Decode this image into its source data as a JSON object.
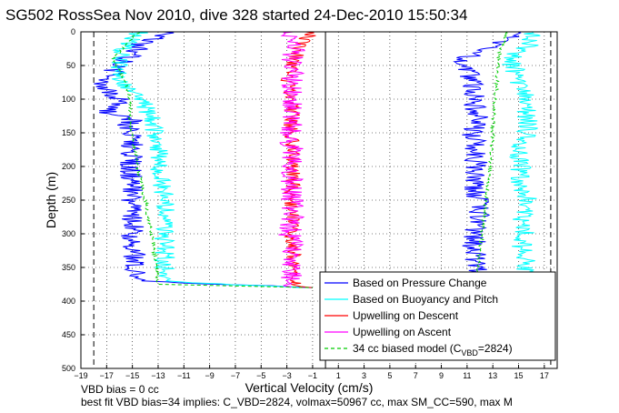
{
  "chart_data": {
    "type": "line",
    "title": "SG502 RossSea Nov 2010, dive 328 started 24-Dec-2010 15:50:34",
    "xlabel": "Vertical Velocity (cm/s)",
    "ylabel": "Depth (m)",
    "xlim": [
      -19,
      18
    ],
    "ylim": [
      0,
      500
    ],
    "y_reversed": true,
    "grid": true,
    "xticks": [
      -19,
      -17,
      -15,
      -13,
      -11,
      -9,
      -7,
      -5,
      -3,
      -1,
      1,
      3,
      5,
      7,
      9,
      11,
      13,
      15,
      17
    ],
    "yticks": [
      0,
      50,
      100,
      150,
      200,
      250,
      300,
      350,
      400,
      450,
      500
    ],
    "vlines": [
      {
        "x": -18,
        "style": "dashed",
        "color": "#000000"
      },
      {
        "x": 0,
        "style": "solid",
        "color": "#000000"
      },
      {
        "x": 17.5,
        "style": "dashed",
        "color": "#000000"
      }
    ],
    "legend_position": "bottom-right",
    "series": [
      {
        "name": "Based on Pressure Change",
        "color": "#0000ff",
        "style": "solid",
        "descent": {
          "depth": [
            0,
            10,
            20,
            30,
            40,
            50,
            60,
            70,
            80,
            90,
            100,
            110,
            120,
            130,
            140,
            150,
            175,
            200,
            225,
            250,
            275,
            300,
            325,
            350,
            370,
            380
          ],
          "velocity": [
            -12,
            -13.5,
            -14.5,
            -14.8,
            -15.5,
            -16,
            -16.5,
            -17,
            -17.5,
            -16.8,
            -16,
            -16.5,
            -17,
            -15,
            -15.5,
            -15.2,
            -15,
            -15.2,
            -15,
            -15.1,
            -15,
            -15,
            -14.8,
            -15,
            -14.5,
            -1
          ]
        },
        "ascent": {
          "depth": [
            380,
            370,
            350,
            325,
            300,
            275,
            250,
            225,
            200,
            175,
            150,
            125,
            100,
            75,
            50,
            40,
            30,
            20,
            10,
            0
          ],
          "velocity": [
            12,
            11.5,
            11.8,
            11.5,
            11.6,
            12,
            11.8,
            11.5,
            11.8,
            11.6,
            11.5,
            11.8,
            11.5,
            11.5,
            11,
            10.8,
            12,
            13,
            14,
            15
          ]
        }
      },
      {
        "name": "Based on Buoyancy and Pitch",
        "color": "#00ffff",
        "style": "solid",
        "descent": {
          "depth": [
            0,
            10,
            20,
            30,
            40,
            50,
            60,
            70,
            80,
            100,
            125,
            150,
            175,
            200,
            225,
            250,
            275,
            300,
            325,
            350,
            370,
            380
          ],
          "velocity": [
            -14.5,
            -15,
            -15.5,
            -15.8,
            -16,
            -16.2,
            -16,
            -15.8,
            -15.5,
            -14.5,
            -13.5,
            -13.2,
            -13,
            -13,
            -12.8,
            -12.5,
            -12.5,
            -12.5,
            -12.5,
            -12.5,
            -12.8,
            -2
          ]
        },
        "ascent": {
          "depth": [
            380,
            360,
            340,
            320,
            300,
            280,
            260,
            240,
            220,
            200,
            180,
            160,
            140,
            120,
            100,
            80,
            60,
            50,
            40,
            30,
            20,
            10,
            0
          ],
          "velocity": [
            15,
            15.5,
            15.5,
            15.2,
            15.5,
            15.3,
            15.8,
            15.5,
            15,
            15.2,
            15,
            15.5,
            15.8,
            15.6,
            15.8,
            15,
            14.8,
            14.5,
            14.5,
            15,
            15.8,
            16,
            16
          ]
        }
      },
      {
        "name": "Upwelling on Descent",
        "color": "#ff0000",
        "style": "solid",
        "descent": {
          "depth": [
            0,
            10,
            20,
            50,
            75,
            100,
            125,
            150,
            175,
            200,
            225,
            250,
            275,
            300,
            325,
            350,
            375,
            380
          ],
          "velocity": [
            -1,
            -1.5,
            -2,
            -2.5,
            -3,
            -2.8,
            -2.5,
            -2.8,
            -2.5,
            -2.6,
            -2.5,
            -2.7,
            -2.5,
            -2.6,
            -2.5,
            -2.5,
            -2.5,
            -1
          ]
        }
      },
      {
        "name": "Upwelling on Ascent",
        "color": "#ff00ff",
        "style": "solid",
        "ascent": {
          "depth": [
            380,
            350,
            325,
            300,
            275,
            250,
            225,
            200,
            175,
            150,
            125,
            100,
            75,
            50,
            25,
            10,
            0
          ],
          "velocity": [
            -2.8,
            -2.5,
            -2.6,
            -2.8,
            -2.5,
            -2.6,
            -2.7,
            -2.5,
            -2.6,
            -2.7,
            -2.5,
            -2.6,
            -2.6,
            -2.5,
            -2.5,
            -2.6,
            -2.5
          ]
        }
      },
      {
        "name": "34 cc biased model (C_VBD=2824)",
        "color": "#00cc00",
        "style": "dashed",
        "descent": {
          "depth": [
            0,
            10,
            20,
            30,
            40,
            50,
            75,
            100,
            125,
            150,
            175,
            200,
            225,
            250,
            275,
            300,
            325,
            350,
            375,
            380
          ],
          "velocity": [
            -14.5,
            -15,
            -15.5,
            -16,
            -16.5,
            -16.2,
            -15.5,
            -15.2,
            -15.2,
            -15,
            -14.8,
            -14.6,
            -14.3,
            -14,
            -13.8,
            -13.5,
            -13.3,
            -13.2,
            -13,
            -1
          ]
        },
        "ascent": {
          "depth": [
            380,
            350,
            325,
            300,
            275,
            250,
            225,
            200,
            175,
            150,
            125,
            100,
            75,
            50,
            25,
            10,
            0
          ],
          "velocity": [
            11.5,
            11.8,
            12,
            12.2,
            12.3,
            12.5,
            12.6,
            12.8,
            12.9,
            13,
            13.1,
            13.2,
            13.3,
            13.4,
            13.6,
            14,
            14
          ]
        }
      }
    ],
    "legend": [
      {
        "label": "Based on Pressure Change",
        "color": "#0000ff",
        "dashed": false
      },
      {
        "label": "Based on Buoyancy and Pitch",
        "color": "#00ffff",
        "dashed": false
      },
      {
        "label": "Upwelling on Descent",
        "color": "#ff0000",
        "dashed": false
      },
      {
        "label": "Upwelling on Ascent",
        "color": "#ff00ff",
        "dashed": false
      },
      {
        "label_main": "34 cc biased model (C",
        "label_sub": "VBD",
        "label_tail": "=2824)",
        "color": "#00cc00",
        "dashed": true
      }
    ]
  },
  "footnotes": {
    "line1": "VBD bias = 0 cc",
    "line2": "best fit VBD bias=34 implies: C_VBD=2824, volmax=50967 cc, max SM_CC=590, max M"
  }
}
